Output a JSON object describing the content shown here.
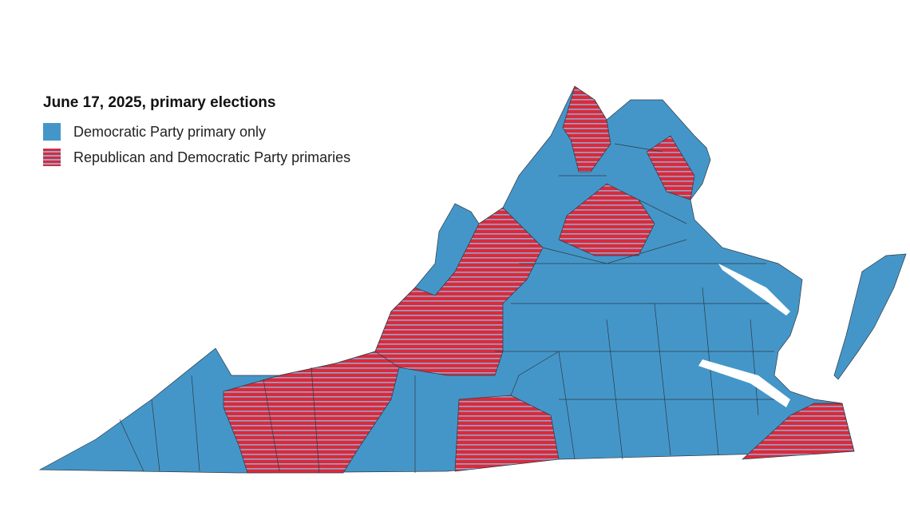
{
  "legend": {
    "title": "June 17, 2025, primary elections",
    "items": [
      "Democratic Party primary only",
      "Republican and Democratic Party primaries"
    ]
  }
}
